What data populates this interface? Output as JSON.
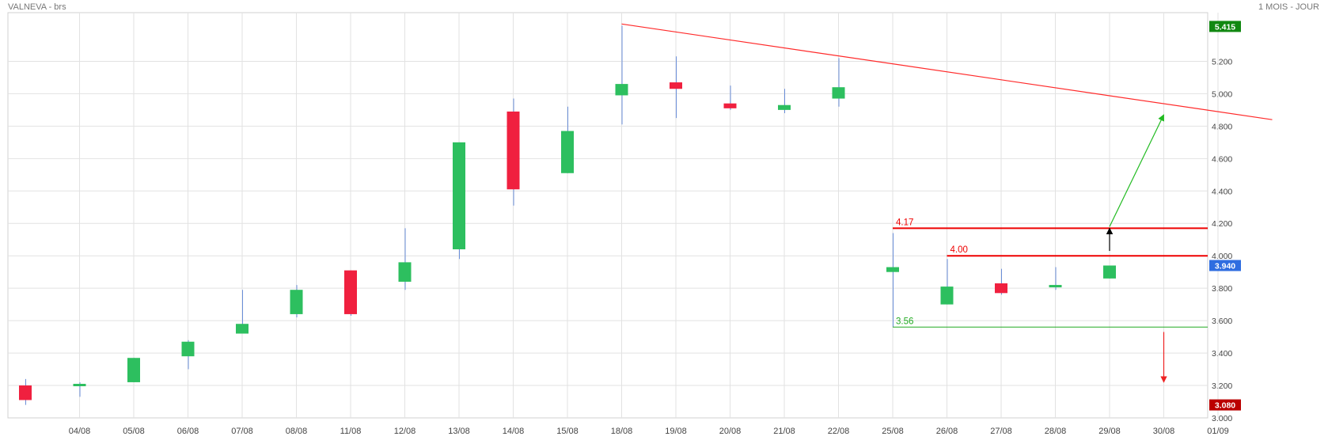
{
  "header": {
    "title": "VALNEVA - brs",
    "period": "1 MOIS - JOUR"
  },
  "colors": {
    "up": "#2dbf5f",
    "down": "#f0203f",
    "wick": "#6a8ed8",
    "grid": "#e2e2e2",
    "trendline": "#ff2a2a",
    "resistance": "#ee0000",
    "support": "#22aa22",
    "target_up": "#22bb22",
    "target_down": "#ee2222",
    "breakout_arrow": "#000000",
    "price_high_badge": "#118811",
    "price_last_badge": "#2f6de0",
    "price_low_badge": "#bb0000"
  },
  "chart_data": {
    "type": "candlestick",
    "x_tick_labels": [
      "04/08",
      "05/08",
      "06/08",
      "07/08",
      "08/08",
      "11/08",
      "12/08",
      "13/08",
      "14/08",
      "15/08",
      "18/08",
      "19/08",
      "20/08",
      "21/08",
      "22/08",
      "25/08",
      "26/08",
      "27/08",
      "28/08",
      "29/08",
      "30/08",
      "01/09"
    ],
    "ylim": [
      3.0,
      5.5
    ],
    "y_tick_labels": [
      "3.000",
      "3.200",
      "3.400",
      "3.600",
      "3.800",
      "4.000",
      "4.200",
      "4.400",
      "4.600",
      "4.800",
      "5.000",
      "5.200"
    ],
    "candles": [
      {
        "date": "01/08",
        "open": 3.2,
        "high": 3.24,
        "low": 3.08,
        "close": 3.11
      },
      {
        "date": "04/08",
        "open": 3.2,
        "high": 3.22,
        "low": 3.13,
        "close": 3.21
      },
      {
        "date": "05/08",
        "open": 3.22,
        "high": 3.37,
        "low": 3.22,
        "close": 3.37
      },
      {
        "date": "06/08",
        "open": 3.38,
        "high": 3.48,
        "low": 3.3,
        "close": 3.47
      },
      {
        "date": "07/08",
        "open": 3.52,
        "high": 3.79,
        "low": 3.52,
        "close": 3.58
      },
      {
        "date": "08/08",
        "open": 3.64,
        "high": 3.82,
        "low": 3.62,
        "close": 3.79
      },
      {
        "date": "11/08",
        "open": 3.91,
        "high": 3.91,
        "low": 3.63,
        "close": 3.64
      },
      {
        "date": "12/08",
        "open": 3.84,
        "high": 4.17,
        "low": 3.79,
        "close": 3.96
      },
      {
        "date": "13/08",
        "open": 4.04,
        "high": 4.7,
        "low": 3.98,
        "close": 4.7
      },
      {
        "date": "14/08",
        "open": 4.89,
        "high": 4.97,
        "low": 4.31,
        "close": 4.41
      },
      {
        "date": "15/08",
        "open": 4.51,
        "high": 4.92,
        "low": 4.51,
        "close": 4.77
      },
      {
        "date": "18/08",
        "open": 4.99,
        "high": 5.42,
        "low": 4.81,
        "close": 5.06
      },
      {
        "date": "19/08",
        "open": 5.07,
        "high": 5.23,
        "low": 4.85,
        "close": 5.03
      },
      {
        "date": "20/08",
        "open": 4.94,
        "high": 5.05,
        "low": 4.9,
        "close": 4.91
      },
      {
        "date": "21/08",
        "open": 4.9,
        "high": 5.03,
        "low": 4.88,
        "close": 4.93
      },
      {
        "date": "22/08",
        "open": 4.97,
        "high": 5.22,
        "low": 4.92,
        "close": 5.04
      },
      {
        "date": "25/08",
        "open": 3.9,
        "high": 4.14,
        "low": 3.56,
        "close": 3.93
      },
      {
        "date": "26/08",
        "open": 3.7,
        "high": 3.98,
        "low": 3.7,
        "close": 3.81
      },
      {
        "date": "27/08",
        "open": 3.83,
        "high": 3.92,
        "low": 3.76,
        "close": 3.77
      },
      {
        "date": "28/08",
        "open": 3.81,
        "high": 3.93,
        "low": 3.79,
        "close": 3.82
      },
      {
        "date": "29/08",
        "open": 3.86,
        "high": 3.94,
        "low": 3.86,
        "close": 3.94
      }
    ],
    "horizontal_levels": [
      {
        "label": "4.17",
        "value": 4.17,
        "color": "#ee0000",
        "from": "25/08"
      },
      {
        "label": "4.00",
        "value": 4.0,
        "color": "#ee0000",
        "from": "26/08"
      },
      {
        "label": "3.56",
        "value": 3.56,
        "color": "#22aa22",
        "from": "25/08"
      }
    ],
    "trendline": {
      "from": {
        "date": "18/08",
        "value": 5.43
      },
      "to": {
        "date": "02/09",
        "value": 4.84
      }
    },
    "arrows": [
      {
        "name": "breakout",
        "x": "29/08",
        "from": 4.03,
        "to": 4.17,
        "color": "#000000"
      },
      {
        "name": "target-up",
        "from": {
          "date": "29/08",
          "value": 4.18
        },
        "to": {
          "date": "30/08",
          "value": 4.87
        },
        "color": "#22bb22"
      },
      {
        "name": "target-down",
        "x": "30/08",
        "from": 3.53,
        "to": 3.22,
        "color": "#ee2222"
      }
    ],
    "price_badges": [
      {
        "label": "5.415",
        "value": 5.415,
        "kind": "high"
      },
      {
        "label": "3.940",
        "value": 3.94,
        "kind": "last"
      },
      {
        "label": "3.080",
        "value": 3.08,
        "kind": "low"
      }
    ]
  }
}
